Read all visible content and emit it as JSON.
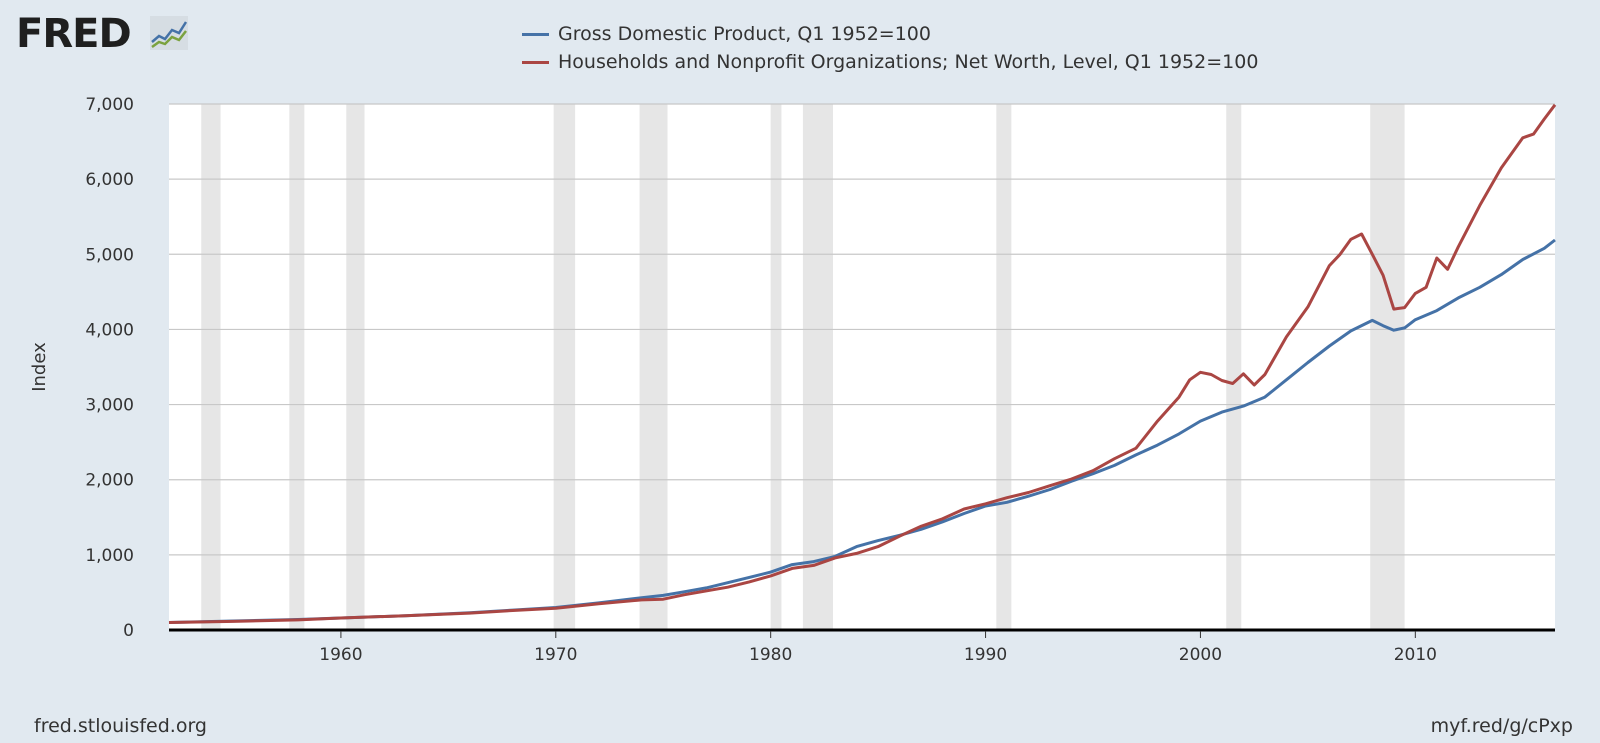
{
  "branding": {
    "logo_text": "FRED",
    "logo_icon": "fred-chart-icon"
  },
  "footer": {
    "source": "fred.stlouisfed.org",
    "shortlink": "myf.red/g/cPxp"
  },
  "colors": {
    "gdp": "#4572a7",
    "networth": "#aa4643",
    "recession": "#e6e6e6",
    "grid": "#c8c8c8",
    "plot_bg": "#ffffff",
    "page_bg": "#e1e9f0"
  },
  "chart_data": {
    "type": "line",
    "title": "",
    "xlabel": "",
    "ylabel": "Index",
    "xlim": [
      1952.0,
      2016.5
    ],
    "ylim": [
      0,
      7000
    ],
    "y_ticks": [
      0,
      1000,
      2000,
      3000,
      4000,
      5000,
      6000,
      7000
    ],
    "y_tick_labels": [
      "0",
      "1,000",
      "2,000",
      "3,000",
      "4,000",
      "5,000",
      "6,000",
      "7,000"
    ],
    "x_ticks": [
      1960,
      1970,
      1980,
      1990,
      2000,
      2010
    ],
    "x_tick_labels": [
      "1960",
      "1970",
      "1980",
      "1990",
      "2000",
      "2010"
    ],
    "grid": true,
    "legend_position": "top-center",
    "recessions": [
      [
        1953.5,
        1954.4
      ],
      [
        1957.6,
        1958.3
      ],
      [
        1960.25,
        1961.1
      ],
      [
        1969.9,
        1970.9
      ],
      [
        1973.9,
        1975.2
      ],
      [
        1980.0,
        1980.5
      ],
      [
        1981.5,
        1982.9
      ],
      [
        1990.5,
        1991.2
      ],
      [
        2001.2,
        2001.9
      ],
      [
        2007.9,
        2009.5
      ]
    ],
    "series": [
      {
        "name": "Gross Domestic Product, Q1 1952=100",
        "color": "#4572a7",
        "points": [
          [
            1952.0,
            100
          ],
          [
            1955,
            120
          ],
          [
            1958,
            140
          ],
          [
            1960,
            160
          ],
          [
            1963,
            190
          ],
          [
            1966,
            230
          ],
          [
            1968,
            265
          ],
          [
            1970,
            300
          ],
          [
            1972,
            360
          ],
          [
            1974,
            430
          ],
          [
            1975,
            460
          ],
          [
            1976,
            510
          ],
          [
            1977,
            560
          ],
          [
            1978,
            630
          ],
          [
            1979,
            700
          ],
          [
            1980,
            770
          ],
          [
            1981,
            870
          ],
          [
            1982,
            910
          ],
          [
            1983,
            980
          ],
          [
            1984,
            1110
          ],
          [
            1985,
            1190
          ],
          [
            1986,
            1260
          ],
          [
            1987,
            1340
          ],
          [
            1988,
            1440
          ],
          [
            1989,
            1550
          ],
          [
            1990,
            1650
          ],
          [
            1991,
            1700
          ],
          [
            1992,
            1780
          ],
          [
            1993,
            1870
          ],
          [
            1994,
            1980
          ],
          [
            1995,
            2080
          ],
          [
            1996,
            2190
          ],
          [
            1997,
            2330
          ],
          [
            1998,
            2460
          ],
          [
            1999,
            2610
          ],
          [
            2000,
            2780
          ],
          [
            2001,
            2900
          ],
          [
            2002,
            2980
          ],
          [
            2003,
            3100
          ],
          [
            2004,
            3330
          ],
          [
            2005,
            3560
          ],
          [
            2006,
            3780
          ],
          [
            2007,
            3980
          ],
          [
            2008,
            4120
          ],
          [
            2008.5,
            4050
          ],
          [
            2009,
            3990
          ],
          [
            2009.5,
            4020
          ],
          [
            2010,
            4130
          ],
          [
            2011,
            4250
          ],
          [
            2012,
            4420
          ],
          [
            2013,
            4560
          ],
          [
            2014,
            4730
          ],
          [
            2015,
            4930
          ],
          [
            2016,
            5080
          ],
          [
            2016.5,
            5190
          ]
        ]
      },
      {
        "name": "Households and Nonprofit Organizations; Net Worth, Level, Q1 1952=100",
        "color": "#aa4643",
        "points": [
          [
            1952.0,
            100
          ],
          [
            1955,
            115
          ],
          [
            1958,
            135
          ],
          [
            1960,
            160
          ],
          [
            1963,
            190
          ],
          [
            1966,
            225
          ],
          [
            1968,
            260
          ],
          [
            1970,
            290
          ],
          [
            1972,
            350
          ],
          [
            1974,
            400
          ],
          [
            1975,
            410
          ],
          [
            1976,
            470
          ],
          [
            1977,
            520
          ],
          [
            1978,
            570
          ],
          [
            1979,
            640
          ],
          [
            1980,
            720
          ],
          [
            1981,
            820
          ],
          [
            1982,
            860
          ],
          [
            1983,
            960
          ],
          [
            1984,
            1020
          ],
          [
            1985,
            1110
          ],
          [
            1986,
            1250
          ],
          [
            1987,
            1380
          ],
          [
            1988,
            1480
          ],
          [
            1989,
            1610
          ],
          [
            1990,
            1680
          ],
          [
            1991,
            1760
          ],
          [
            1992,
            1830
          ],
          [
            1993,
            1920
          ],
          [
            1994,
            2010
          ],
          [
            1995,
            2120
          ],
          [
            1996,
            2280
          ],
          [
            1997,
            2420
          ],
          [
            1998,
            2780
          ],
          [
            1999,
            3100
          ],
          [
            1999.5,
            3330
          ],
          [
            2000,
            3430
          ],
          [
            2000.5,
            3400
          ],
          [
            2001,
            3320
          ],
          [
            2001.5,
            3280
          ],
          [
            2002,
            3410
          ],
          [
            2002.5,
            3260
          ],
          [
            2003,
            3400
          ],
          [
            2004,
            3900
          ],
          [
            2005,
            4300
          ],
          [
            2006,
            4850
          ],
          [
            2006.5,
            5000
          ],
          [
            2007,
            5200
          ],
          [
            2007.5,
            5270
          ],
          [
            2008,
            5000
          ],
          [
            2008.5,
            4720
          ],
          [
            2009,
            4270
          ],
          [
            2009.5,
            4290
          ],
          [
            2010,
            4480
          ],
          [
            2010.5,
            4560
          ],
          [
            2011,
            4950
          ],
          [
            2011.5,
            4800
          ],
          [
            2012,
            5100
          ],
          [
            2013,
            5650
          ],
          [
            2014,
            6150
          ],
          [
            2015,
            6550
          ],
          [
            2015.5,
            6600
          ],
          [
            2016,
            6800
          ],
          [
            2016.5,
            6990
          ]
        ]
      }
    ]
  }
}
